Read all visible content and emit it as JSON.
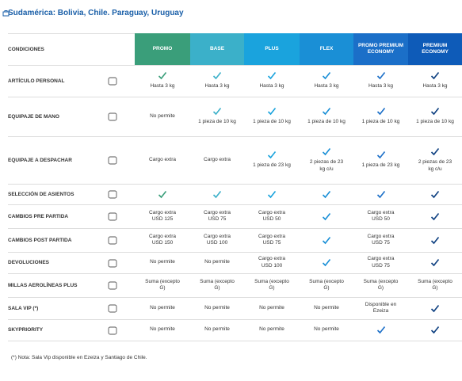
{
  "title": "Sudamérica: Bolivia, Chile. Paraguay, Uruguay",
  "table": {
    "header": [
      "CONDICIONES",
      "PROMO",
      "BASE",
      "PLUS",
      "FLEX",
      "PROMO PREMIUM ECONOMY",
      "PREMIUM ECONOMY"
    ],
    "rows": [
      {
        "label": "ARTÍCULO PERSONAL",
        "cells": [
          {
            "check": true,
            "text": "Hasta 3 kg"
          },
          {
            "check": true,
            "text": "Hasta 3 kg"
          },
          {
            "check": true,
            "text": "Hasta 3 kg"
          },
          {
            "check": true,
            "text": "Hasta 3 kg"
          },
          {
            "check": true,
            "text": "Hasta 3 kg"
          },
          {
            "check": true,
            "text": "Hasta 3 kg"
          }
        ]
      },
      {
        "label": "EQUIPAJE DE MANO",
        "cells": [
          {
            "text": "No permite"
          },
          {
            "check": true,
            "text": "1 pieza de 10 kg"
          },
          {
            "check": true,
            "text": "1 pieza de 10 kg"
          },
          {
            "check": true,
            "text": "1 pieza de 10 kg"
          },
          {
            "check": true,
            "text": "1 pieza de 10 kg"
          },
          {
            "check": true,
            "text": "1 pieza de 10 kg"
          }
        ]
      },
      {
        "label": "EQUIPAJE A DESPACHAR",
        "cells": [
          {
            "text": "Cargo extra"
          },
          {
            "text": "Cargo extra"
          },
          {
            "check": true,
            "text": "1 pieza de 23 kg"
          },
          {
            "check": true,
            "text": "2 piezas de 23 kg c/u"
          },
          {
            "check": true,
            "text": "1 pieza de 23 kg"
          },
          {
            "check": true,
            "text": "2 piezas de 23 kg c/u"
          }
        ]
      },
      {
        "label": "SELECCIÓN DE ASIENTOS",
        "cells": [
          {
            "check": true
          },
          {
            "check": true
          },
          {
            "check": true
          },
          {
            "check": true
          },
          {
            "check": true
          },
          {
            "check": true
          }
        ]
      },
      {
        "label": "CAMBIOS PRE PARTIDA",
        "cells": [
          {
            "text": "Cargo extra USD 125"
          },
          {
            "text": "Cargo extra USD 75"
          },
          {
            "text": "Cargo extra USD 50"
          },
          {
            "check": true
          },
          {
            "text": "Cargo extra USD 50"
          },
          {
            "check": true
          }
        ]
      },
      {
        "label": "CAMBIOS POST PARTIDA",
        "cells": [
          {
            "text": "Cargo extra USD 150"
          },
          {
            "text": "Cargo extra USD 100"
          },
          {
            "text": "Cargo extra USD 75"
          },
          {
            "check": true
          },
          {
            "text": "Cargo extra USD 75"
          },
          {
            "check": true
          }
        ]
      },
      {
        "label": "DEVOLUCIONES",
        "cells": [
          {
            "text": "No permite"
          },
          {
            "text": "No permite"
          },
          {
            "text": "Cargo extra USD 100"
          },
          {
            "check": true
          },
          {
            "text": "Cargo extra USD 75"
          },
          {
            "check": true
          }
        ]
      },
      {
        "label": "MILLAS AEROLÍNEAS PLUS",
        "cells": [
          {
            "text": "Suma (excepto G)"
          },
          {
            "text": "Suma (excepto G)"
          },
          {
            "text": "Suma (excepto G)"
          },
          {
            "text": "Suma (excepto G)"
          },
          {
            "text": "Suma (excepto G)"
          },
          {
            "text": "Suma (excepto G)"
          }
        ]
      },
      {
        "label": "SALA VIP (*)",
        "cells": [
          {
            "text": "No permite"
          },
          {
            "text": "No permite"
          },
          {
            "text": "No permite"
          },
          {
            "text": "No permite"
          },
          {
            "text": "Disponible en Ezeiza"
          },
          {
            "check": true
          }
        ]
      },
      {
        "label": "SKYPRIORITY",
        "cells": [
          {
            "text": "No permite"
          },
          {
            "text": "No permite"
          },
          {
            "text": "No permite"
          },
          {
            "text": "No permite"
          },
          {
            "check": true
          },
          {
            "check": true
          }
        ]
      }
    ]
  },
  "footnote": "(*) Nota: Sala Vip disponible en Ezeiza y Santiago de Chile."
}
